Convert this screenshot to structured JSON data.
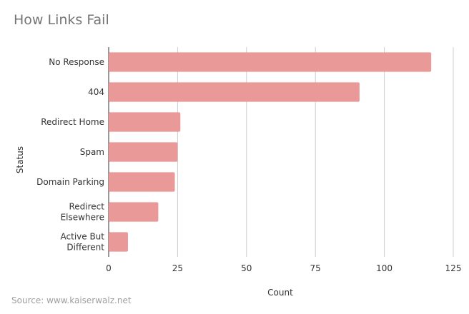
{
  "chart_data": {
    "type": "bar",
    "orientation": "horizontal",
    "title": "How Links Fail",
    "xlabel": "Count",
    "ylabel": "Status",
    "categories": [
      [
        "No Response"
      ],
      [
        "404"
      ],
      [
        "Redirect Home"
      ],
      [
        "Spam"
      ],
      [
        "Domain Parking"
      ],
      [
        "Redirect",
        "Elsewhere"
      ],
      [
        "Active But",
        "Different"
      ]
    ],
    "values": [
      117,
      91,
      26,
      25,
      24,
      18,
      7
    ],
    "xlim": [
      0,
      125
    ],
    "xticks": [
      0,
      25,
      50,
      75,
      100,
      125
    ],
    "grid": true,
    "bar_color": "#ea9999",
    "source": "Source: www.kaiserwalz.net"
  }
}
